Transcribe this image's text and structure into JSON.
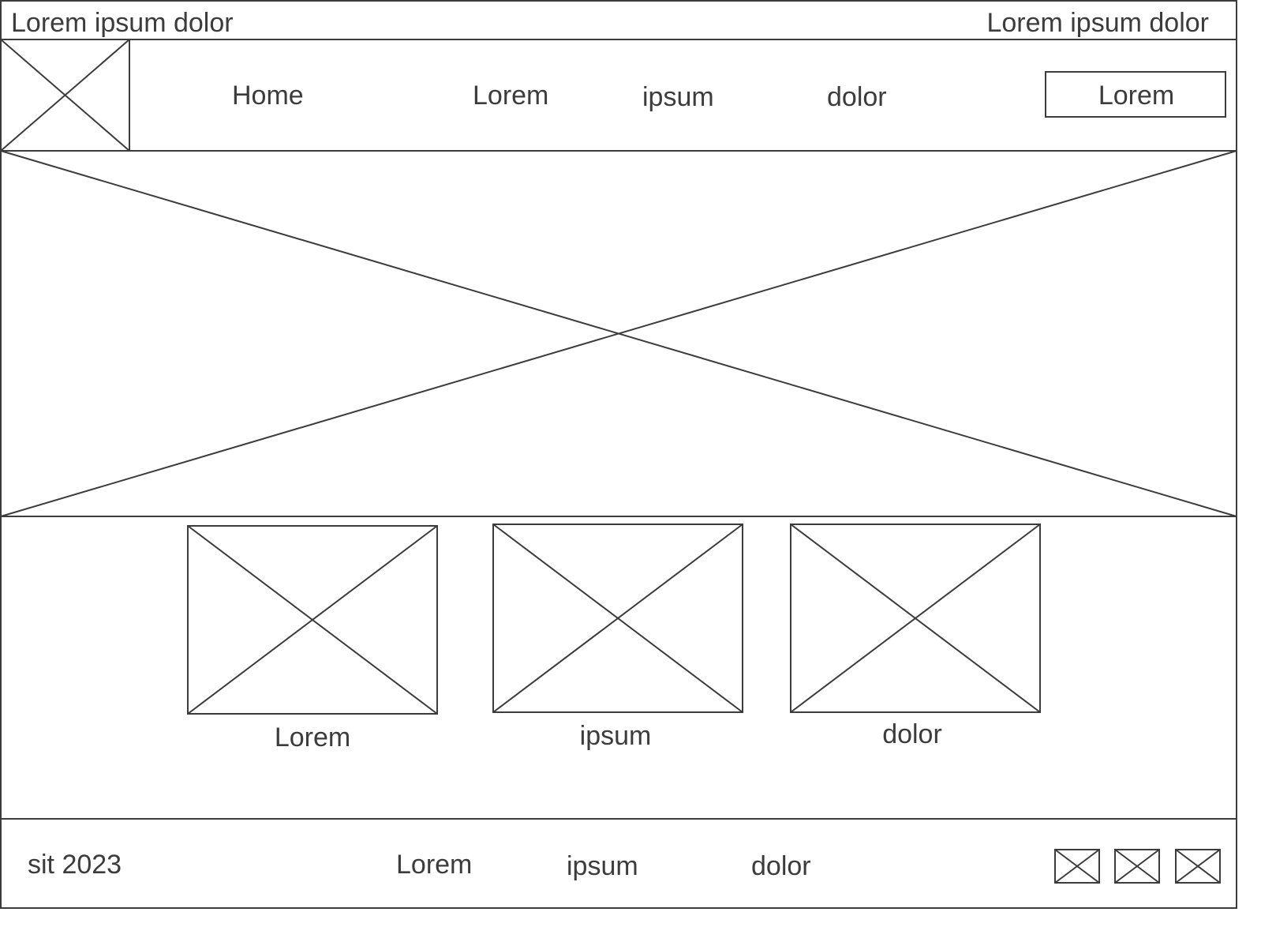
{
  "topbar": {
    "left_text": "Lorem ipsum dolor",
    "right_text": "Lorem ipsum dolor"
  },
  "nav": {
    "logo_icon": "image-placeholder-icon",
    "links": [
      "Home",
      "Lorem",
      "ipsum",
      "dolor"
    ],
    "button_label": "Lorem"
  },
  "hero": {
    "icon": "image-placeholder-icon"
  },
  "features": {
    "cards": [
      {
        "label": "Lorem",
        "icon": "image-placeholder-icon"
      },
      {
        "label": "ipsum",
        "icon": "image-placeholder-icon"
      },
      {
        "label": "dolor",
        "icon": "image-placeholder-icon"
      }
    ]
  },
  "footer": {
    "copyright": "sit 2023",
    "links": [
      "Lorem",
      "ipsum",
      "dolor"
    ],
    "social_icons": [
      "image-placeholder-icon",
      "image-placeholder-icon",
      "image-placeholder-icon"
    ]
  },
  "colors": {
    "stroke": "#3c3c3c",
    "background": "#ffffff"
  }
}
